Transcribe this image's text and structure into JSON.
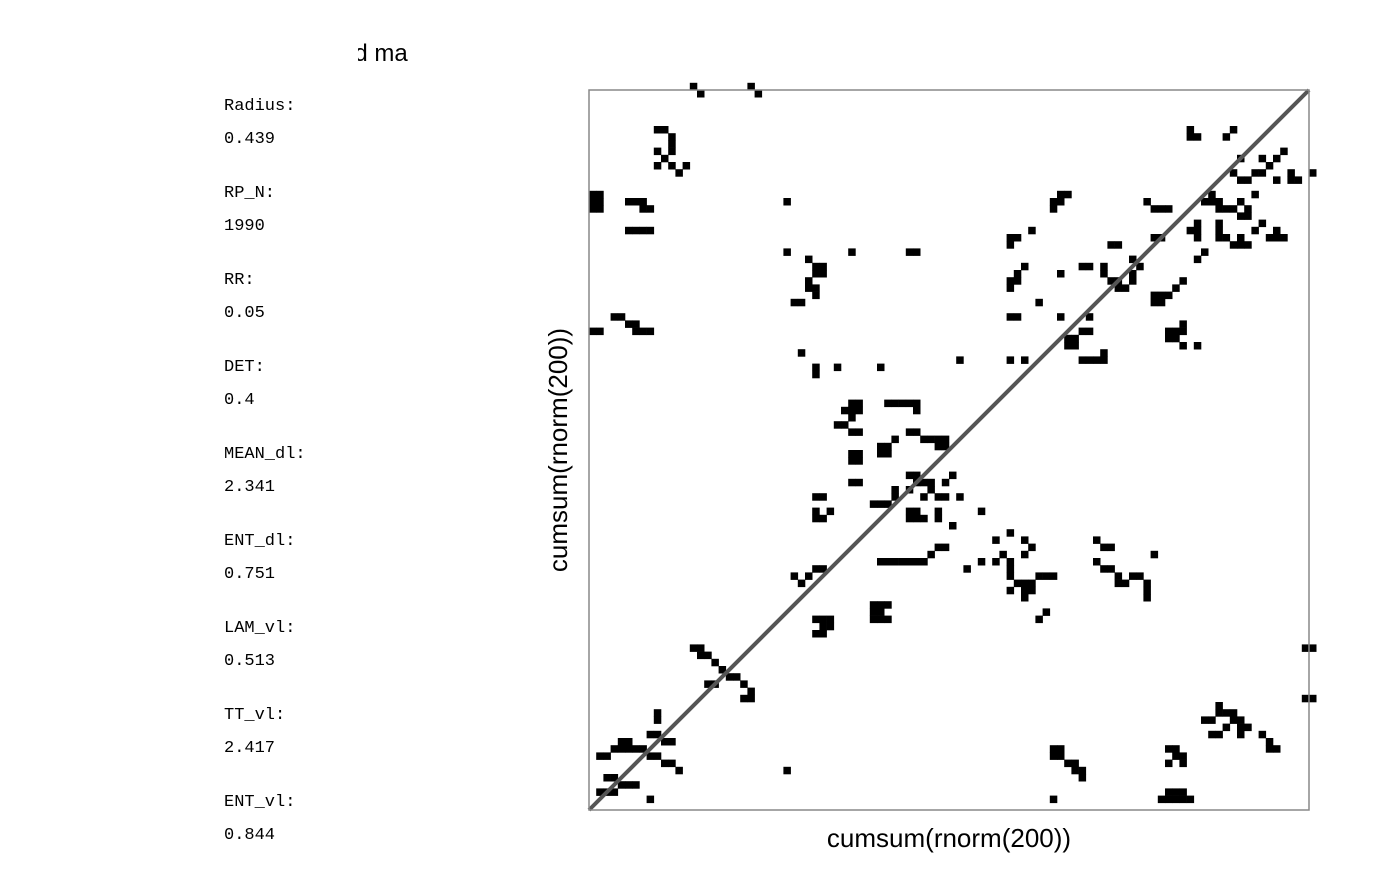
{
  "chart_data": {
    "type": "heatmap",
    "title": "ursegrained ma",
    "xlabel": "cumsum(rnorm(200))",
    "ylabel": "cumsum(rnorm(200))",
    "grid_size": 100,
    "diagonal": "line of identity",
    "colors": {
      "recurrence": "#000000",
      "background": "#ffffff",
      "diagonal": "#555555",
      "frame": "#888888"
    },
    "points": [
      [
        14,
        100
      ],
      [
        15,
        99
      ],
      [
        22,
        100
      ],
      [
        23,
        99
      ],
      [
        9,
        94
      ],
      [
        10,
        94
      ],
      [
        11,
        93
      ],
      [
        11,
        92
      ],
      [
        9,
        91
      ],
      [
        11,
        91
      ],
      [
        10,
        90
      ],
      [
        9,
        89
      ],
      [
        11,
        89
      ],
      [
        12,
        88
      ],
      [
        13,
        89
      ],
      [
        0,
        85
      ],
      [
        1,
        85
      ],
      [
        0,
        84
      ],
      [
        1,
        84
      ],
      [
        0,
        83
      ],
      [
        1,
        83
      ],
      [
        5,
        84
      ],
      [
        6,
        84
      ],
      [
        7,
        84
      ],
      [
        7,
        83
      ],
      [
        8,
        83
      ],
      [
        27,
        84
      ],
      [
        31,
        75
      ],
      [
        32,
        75
      ],
      [
        31,
        74
      ],
      [
        32,
        74
      ],
      [
        30,
        73
      ],
      [
        30,
        72
      ],
      [
        31,
        72
      ],
      [
        31,
        71
      ],
      [
        28,
        70
      ],
      [
        29,
        70
      ],
      [
        3,
        68
      ],
      [
        4,
        68
      ],
      [
        5,
        67
      ],
      [
        6,
        67
      ],
      [
        6,
        66
      ],
      [
        7,
        66
      ],
      [
        8,
        66
      ],
      [
        0,
        66
      ],
      [
        1,
        66
      ],
      [
        29,
        63
      ],
      [
        31,
        61
      ],
      [
        31,
        60
      ],
      [
        34,
        61
      ],
      [
        40,
        61
      ],
      [
        36,
        56
      ],
      [
        37,
        56
      ],
      [
        35,
        55
      ],
      [
        36,
        55
      ],
      [
        37,
        55
      ],
      [
        34,
        53
      ],
      [
        35,
        53
      ],
      [
        36,
        52
      ],
      [
        37,
        52
      ],
      [
        36,
        54
      ],
      [
        41,
        56
      ],
      [
        42,
        56
      ],
      [
        43,
        56
      ],
      [
        44,
        56
      ],
      [
        45,
        56
      ],
      [
        45,
        55
      ],
      [
        44,
        52
      ],
      [
        45,
        52
      ],
      [
        46,
        51
      ],
      [
        47,
        51
      ],
      [
        48,
        51
      ],
      [
        49,
        51
      ],
      [
        48,
        50
      ],
      [
        49,
        50
      ],
      [
        36,
        49
      ],
      [
        37,
        49
      ],
      [
        36,
        48
      ],
      [
        37,
        48
      ],
      [
        40,
        50
      ],
      [
        41,
        50
      ],
      [
        40,
        49
      ],
      [
        41,
        49
      ],
      [
        42,
        51
      ],
      [
        36,
        45
      ],
      [
        37,
        45
      ],
      [
        42,
        44
      ],
      [
        44,
        44
      ],
      [
        45,
        45
      ],
      [
        46,
        45
      ],
      [
        47,
        45
      ],
      [
        49,
        45
      ],
      [
        50,
        46
      ],
      [
        48,
        43
      ],
      [
        49,
        43
      ],
      [
        47,
        44
      ],
      [
        46,
        43
      ],
      [
        44,
        46
      ],
      [
        45,
        46
      ],
      [
        31,
        43
      ],
      [
        32,
        43
      ],
      [
        31,
        41
      ],
      [
        31,
        40
      ],
      [
        32,
        40
      ],
      [
        33,
        41
      ],
      [
        39,
        42
      ],
      [
        40,
        42
      ],
      [
        41,
        42
      ],
      [
        42,
        43
      ],
      [
        44,
        40
      ],
      [
        44,
        41
      ],
      [
        45,
        41
      ],
      [
        45,
        40
      ],
      [
        46,
        40
      ],
      [
        48,
        40
      ],
      [
        48,
        41
      ],
      [
        50,
        39
      ],
      [
        51,
        43
      ],
      [
        54,
        41
      ],
      [
        58,
        34
      ],
      [
        62,
        32
      ],
      [
        63,
        32
      ],
      [
        64,
        32
      ],
      [
        60,
        31
      ],
      [
        60,
        30
      ],
      [
        61,
        31
      ],
      [
        51,
        62
      ],
      [
        58,
        62
      ],
      [
        60,
        62
      ],
      [
        68,
        62
      ],
      [
        69,
        62
      ],
      [
        70,
        62
      ],
      [
        71,
        62
      ],
      [
        71,
        63
      ],
      [
        58,
        72
      ],
      [
        58,
        73
      ],
      [
        59,
        73
      ],
      [
        60,
        75
      ],
      [
        59,
        74
      ],
      [
        58,
        68
      ],
      [
        59,
        68
      ],
      [
        62,
        70
      ],
      [
        65,
        68
      ],
      [
        69,
        68
      ],
      [
        68,
        75
      ],
      [
        71,
        75
      ],
      [
        71,
        74
      ],
      [
        72,
        73
      ],
      [
        73,
        73
      ],
      [
        74,
        72
      ],
      [
        73,
        72
      ],
      [
        75,
        76
      ],
      [
        76,
        75
      ],
      [
        75,
        74
      ],
      [
        75,
        73
      ],
      [
        66,
        65
      ],
      [
        66,
        64
      ],
      [
        67,
        65
      ],
      [
        67,
        64
      ],
      [
        68,
        66
      ],
      [
        69,
        66
      ],
      [
        80,
        66
      ],
      [
        81,
        66
      ],
      [
        80,
        65
      ],
      [
        81,
        65
      ],
      [
        82,
        67
      ],
      [
        82,
        66
      ],
      [
        82,
        64
      ],
      [
        84,
        64
      ],
      [
        77,
        84
      ],
      [
        78,
        83
      ],
      [
        79,
        83
      ],
      [
        80,
        83
      ],
      [
        84,
        81
      ],
      [
        84,
        80
      ],
      [
        83,
        80
      ],
      [
        84,
        79
      ],
      [
        87,
        79
      ],
      [
        88,
        79
      ],
      [
        87,
        80
      ],
      [
        87,
        81
      ],
      [
        90,
        87
      ],
      [
        91,
        87
      ],
      [
        89,
        88
      ],
      [
        92,
        88
      ],
      [
        93,
        88
      ],
      [
        94,
        89
      ],
      [
        93,
        90
      ],
      [
        95,
        90
      ],
      [
        96,
        91
      ],
      [
        97,
        88
      ],
      [
        97,
        87
      ],
      [
        98,
        87
      ],
      [
        64,
        84
      ],
      [
        65,
        84
      ],
      [
        66,
        85
      ],
      [
        64,
        83
      ],
      [
        65,
        85
      ],
      [
        58,
        78
      ],
      [
        58,
        79
      ],
      [
        59,
        79
      ],
      [
        61,
        80
      ],
      [
        65,
        74
      ],
      [
        69,
        75
      ],
      [
        83,
        93
      ],
      [
        83,
        94
      ],
      [
        84,
        93
      ],
      [
        88,
        93
      ],
      [
        89,
        94
      ],
      [
        90,
        90
      ],
      [
        95,
        87
      ],
      [
        100,
        88
      ],
      [
        85,
        84
      ],
      [
        86,
        84
      ],
      [
        87,
        84
      ],
      [
        87,
        83
      ],
      [
        86,
        85
      ],
      [
        78,
        71
      ],
      [
        79,
        71
      ],
      [
        78,
        70
      ],
      [
        79,
        70
      ],
      [
        80,
        71
      ],
      [
        81,
        72
      ],
      [
        82,
        73
      ],
      [
        85,
        77
      ],
      [
        84,
        76
      ],
      [
        88,
        83
      ],
      [
        89,
        83
      ],
      [
        90,
        84
      ],
      [
        90,
        82
      ],
      [
        91,
        82
      ],
      [
        91,
        83
      ],
      [
        92,
        85
      ],
      [
        92,
        80
      ],
      [
        93,
        81
      ],
      [
        94,
        79
      ],
      [
        95,
        79
      ],
      [
        96,
        79
      ],
      [
        95,
        80
      ],
      [
        89,
        78
      ],
      [
        90,
        78
      ],
      [
        91,
        78
      ],
      [
        90,
        79
      ],
      [
        5,
        80
      ],
      [
        6,
        80
      ],
      [
        7,
        80
      ],
      [
        8,
        80
      ],
      [
        58,
        32
      ],
      [
        59,
        31
      ],
      [
        60,
        31
      ],
      [
        58,
        33
      ],
      [
        61,
        30
      ],
      [
        70,
        34
      ],
      [
        71,
        33
      ],
      [
        72,
        33
      ],
      [
        73,
        32
      ],
      [
        73,
        31
      ],
      [
        74,
        31
      ],
      [
        75,
        32
      ],
      [
        76,
        32
      ],
      [
        77,
        31
      ],
      [
        77,
        30
      ],
      [
        77,
        29
      ],
      [
        56,
        37
      ],
      [
        58,
        38
      ],
      [
        60,
        37
      ],
      [
        61,
        36
      ],
      [
        60,
        35
      ],
      [
        52,
        33
      ],
      [
        54,
        34
      ],
      [
        56,
        34
      ],
      [
        57,
        35
      ],
      [
        40,
        34
      ],
      [
        41,
        34
      ],
      [
        42,
        34
      ],
      [
        43,
        34
      ],
      [
        44,
        34
      ],
      [
        45,
        34
      ],
      [
        46,
        34
      ],
      [
        47,
        35
      ],
      [
        48,
        36
      ],
      [
        49,
        36
      ],
      [
        39,
        28
      ],
      [
        40,
        28
      ],
      [
        41,
        28
      ],
      [
        39,
        27
      ],
      [
        40,
        27
      ],
      [
        39,
        26
      ],
      [
        40,
        26
      ],
      [
        41,
        26
      ],
      [
        32,
        25
      ],
      [
        33,
        25
      ],
      [
        31,
        26
      ],
      [
        32,
        26
      ],
      [
        33,
        26
      ],
      [
        31,
        24
      ],
      [
        32,
        24
      ],
      [
        1,
        7
      ],
      [
        2,
        7
      ],
      [
        3,
        8
      ],
      [
        4,
        8
      ],
      [
        5,
        8
      ],
      [
        6,
        8
      ],
      [
        7,
        8
      ],
      [
        5,
        9
      ],
      [
        4,
        9
      ],
      [
        2,
        4
      ],
      [
        3,
        4
      ],
      [
        4,
        3
      ],
      [
        5,
        3
      ],
      [
        6,
        3
      ],
      [
        8,
        10
      ],
      [
        9,
        10
      ],
      [
        10,
        9
      ],
      [
        11,
        9
      ],
      [
        9,
        12
      ],
      [
        9,
        13
      ],
      [
        8,
        7
      ],
      [
        9,
        7
      ],
      [
        10,
        6
      ],
      [
        11,
        6
      ],
      [
        12,
        5
      ],
      [
        14,
        22
      ],
      [
        15,
        22
      ],
      [
        15,
        21
      ],
      [
        16,
        21
      ],
      [
        17,
        20
      ],
      [
        18,
        19
      ],
      [
        20,
        18
      ],
      [
        21,
        17
      ],
      [
        22,
        16
      ],
      [
        22,
        15
      ],
      [
        27,
        5
      ],
      [
        64,
        8
      ],
      [
        65,
        8
      ],
      [
        64,
        7
      ],
      [
        65,
        7
      ],
      [
        66,
        6
      ],
      [
        67,
        6
      ],
      [
        67,
        5
      ],
      [
        68,
        5
      ],
      [
        68,
        4
      ],
      [
        80,
        8
      ],
      [
        81,
        8
      ],
      [
        82,
        7
      ],
      [
        82,
        6
      ],
      [
        81,
        7
      ],
      [
        80,
        6
      ],
      [
        64,
        1
      ],
      [
        79,
        1
      ],
      [
        80,
        1
      ],
      [
        81,
        1
      ],
      [
        82,
        1
      ],
      [
        83,
        1
      ],
      [
        80,
        2
      ],
      [
        81,
        2
      ],
      [
        82,
        2
      ],
      [
        85,
        12
      ],
      [
        86,
        12
      ],
      [
        87,
        13
      ],
      [
        88,
        13
      ],
      [
        89,
        13
      ],
      [
        90,
        12
      ],
      [
        90,
        11
      ],
      [
        91,
        11
      ],
      [
        89,
        12
      ],
      [
        86,
        10
      ],
      [
        87,
        10
      ],
      [
        88,
        11
      ],
      [
        90,
        10
      ],
      [
        93,
        10
      ],
      [
        94,
        9
      ],
      [
        94,
        8
      ],
      [
        95,
        8
      ],
      [
        87,
        14
      ],
      [
        99,
        15
      ],
      [
        100,
        15
      ],
      [
        99,
        22
      ],
      [
        100,
        22
      ],
      [
        30,
        32
      ],
      [
        31,
        33
      ],
      [
        32,
        33
      ],
      [
        28,
        32
      ],
      [
        29,
        31
      ],
      [
        2,
        4
      ],
      [
        1,
        2
      ],
      [
        2,
        2
      ],
      [
        3,
        2
      ],
      [
        8,
        1
      ],
      [
        16,
        17
      ],
      [
        17,
        17
      ],
      [
        19,
        18
      ],
      [
        21,
        15
      ],
      [
        27,
        77
      ],
      [
        30,
        76
      ],
      [
        31,
        75
      ],
      [
        36,
        77
      ],
      [
        44,
        77
      ],
      [
        45,
        77
      ],
      [
        72,
        78
      ],
      [
        73,
        78
      ],
      [
        78,
        79
      ],
      [
        79,
        79
      ],
      [
        58,
        30
      ],
      [
        60,
        29
      ],
      [
        62,
        26
      ],
      [
        63,
        27
      ],
      [
        70,
        37
      ],
      [
        71,
        36
      ],
      [
        72,
        36
      ],
      [
        78,
        35
      ]
    ]
  }
}
